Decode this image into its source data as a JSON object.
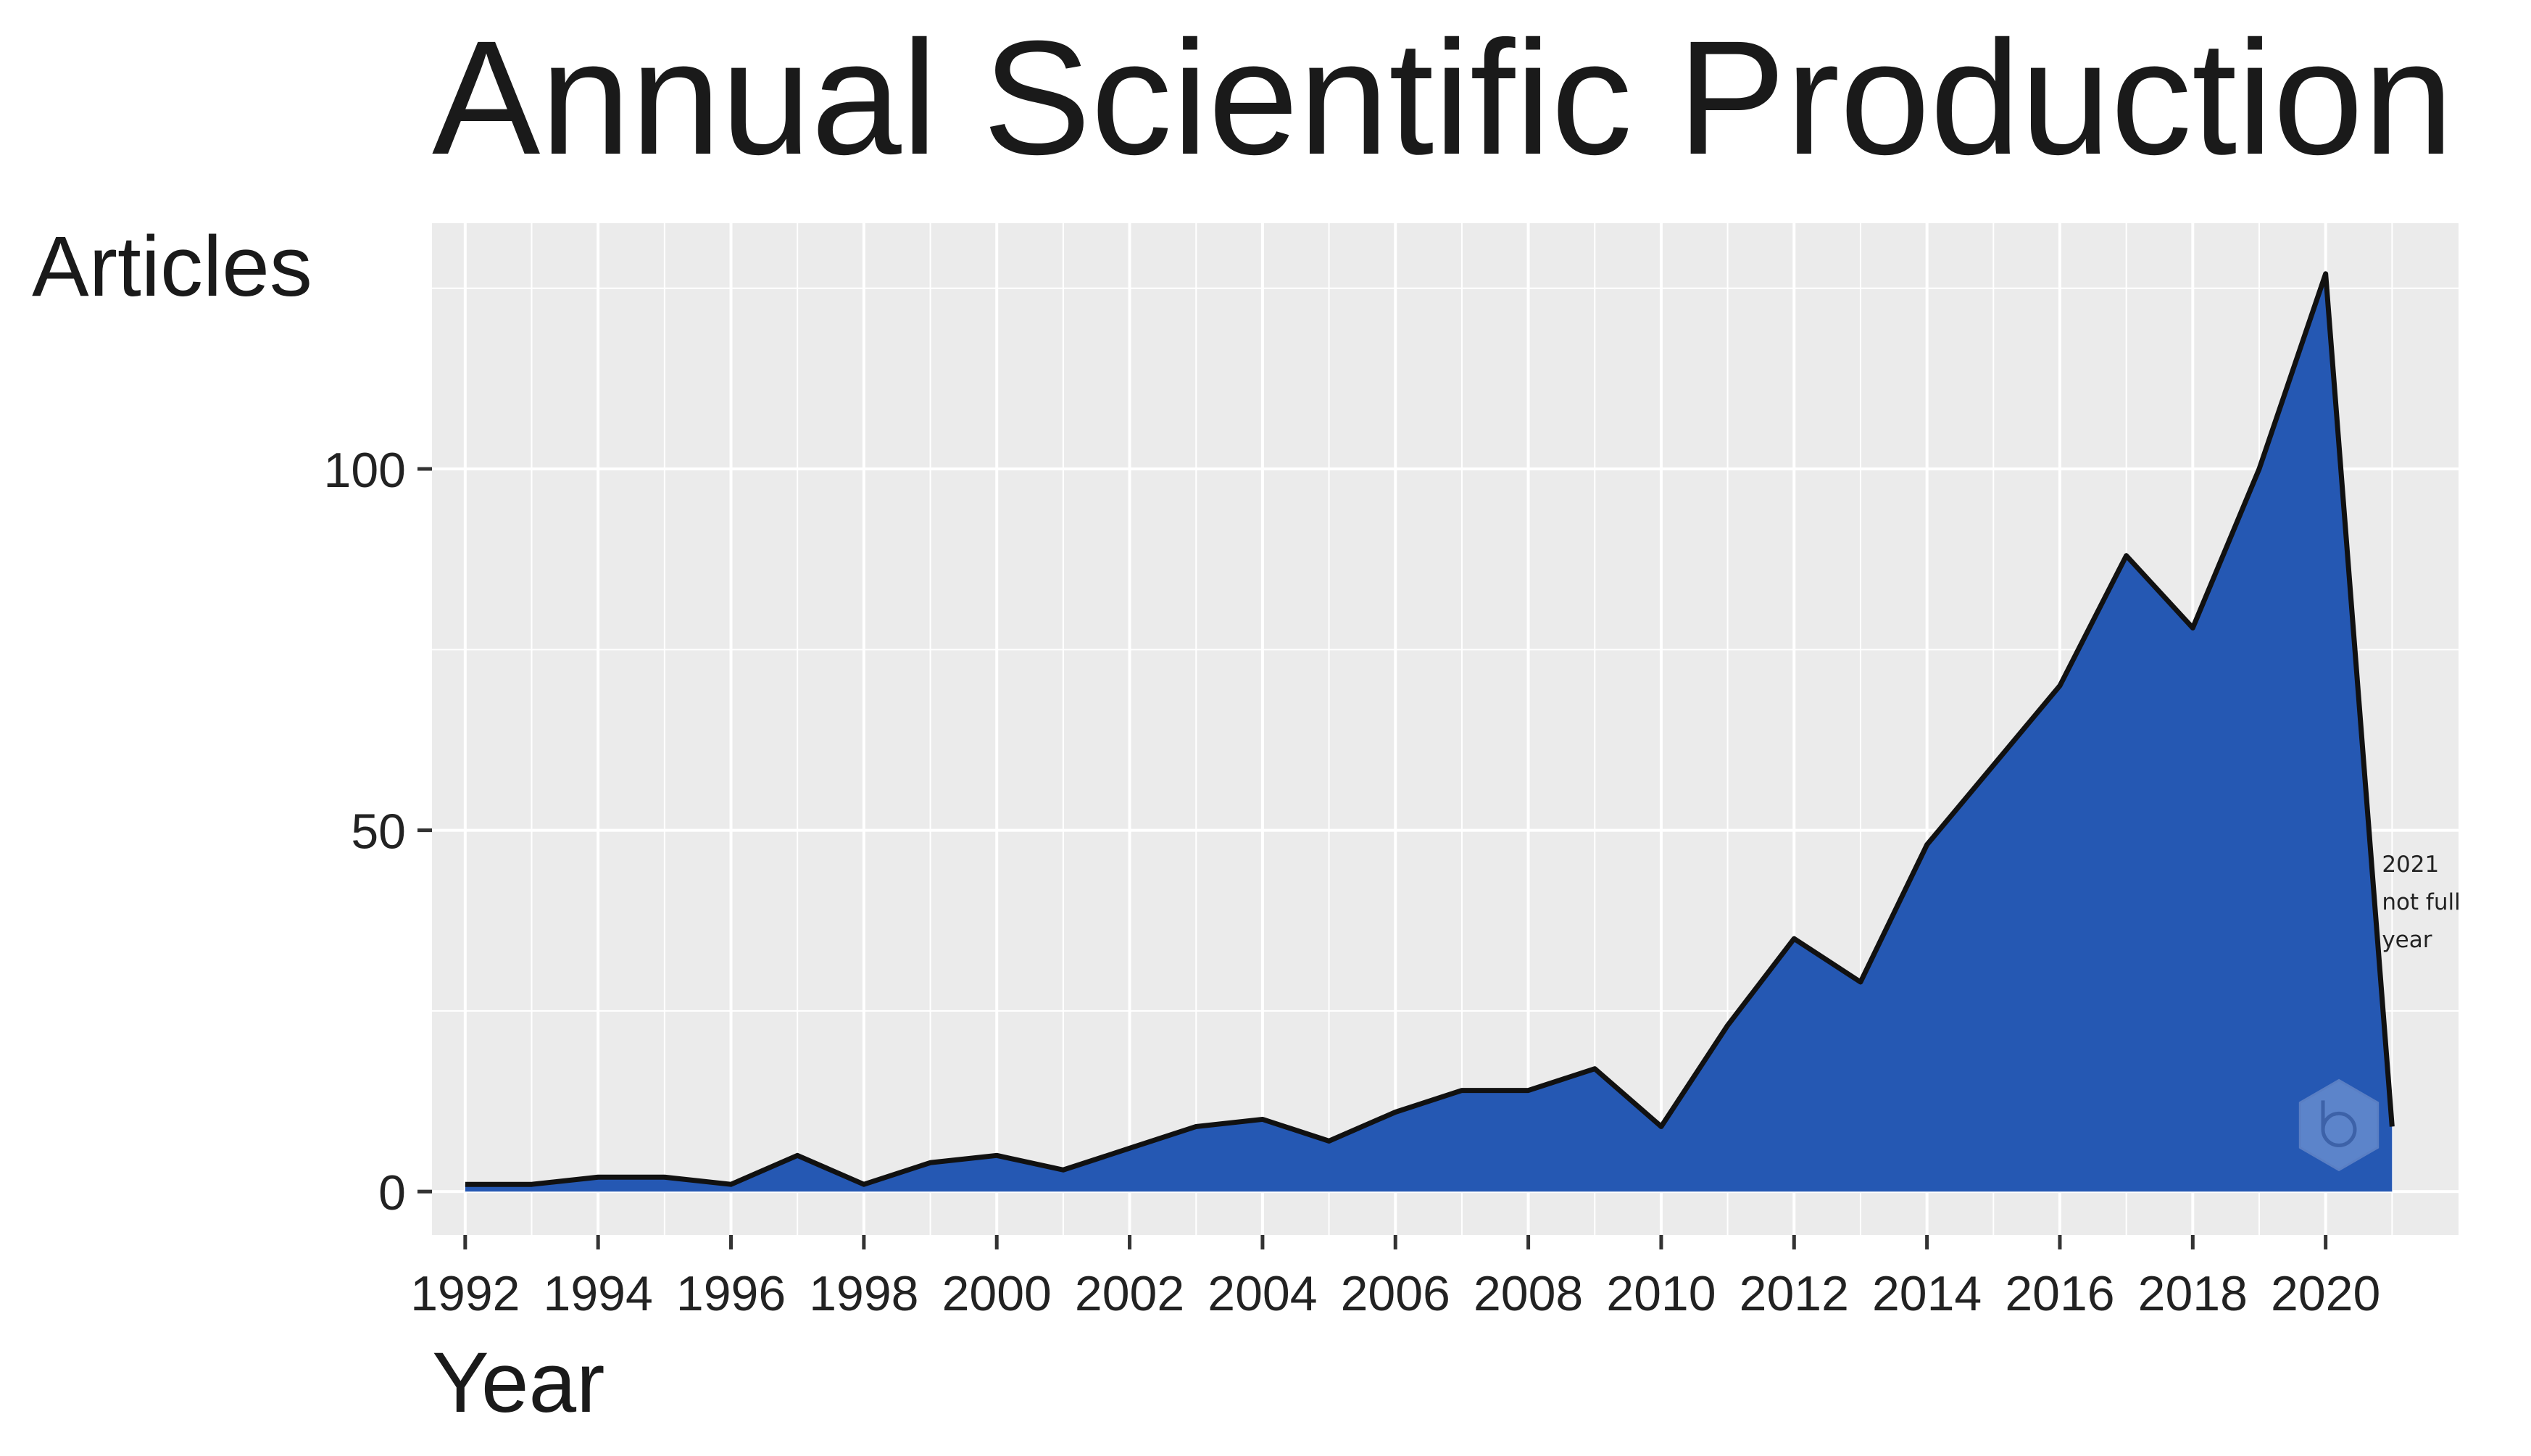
{
  "chart_data": {
    "type": "area",
    "title": "Annual Scientific Production",
    "xlabel": "Year",
    "ylabel": "Articles",
    "x": [
      1992,
      1993,
      1994,
      1995,
      1996,
      1997,
      1998,
      1999,
      2000,
      2001,
      2002,
      2003,
      2004,
      2005,
      2006,
      2007,
      2008,
      2009,
      2010,
      2011,
      2012,
      2013,
      2014,
      2015,
      2016,
      2017,
      2018,
      2019,
      2020,
      2021
    ],
    "values": [
      1,
      1,
      2,
      2,
      1,
      5,
      1,
      4,
      5,
      3,
      6,
      9,
      10,
      7,
      11,
      14,
      14,
      17,
      9,
      23,
      35,
      29,
      48,
      59,
      70,
      88,
      78,
      100,
      127,
      9
    ],
    "x_ticks": [
      "1992",
      "1994",
      "1996",
      "1998",
      "2000",
      "2002",
      "2004",
      "2006",
      "2008",
      "2010",
      "2012",
      "2014",
      "2016",
      "2018",
      "2020"
    ],
    "y_ticks": [
      "0",
      "50",
      "100"
    ],
    "xlim": [
      1991.5,
      2022.0
    ],
    "ylim": [
      -6,
      134
    ],
    "grid": true,
    "annotation": {
      "x": 2021,
      "lines": [
        "2021",
        "not full",
        "year"
      ]
    },
    "colors": {
      "fill": "#2558b3",
      "line": "#111111",
      "panel": "#ebebeb",
      "grid": "#ffffff",
      "logo": "#6f93d2"
    },
    "logo_icon": "bibliometrix-hexagon-logo"
  }
}
